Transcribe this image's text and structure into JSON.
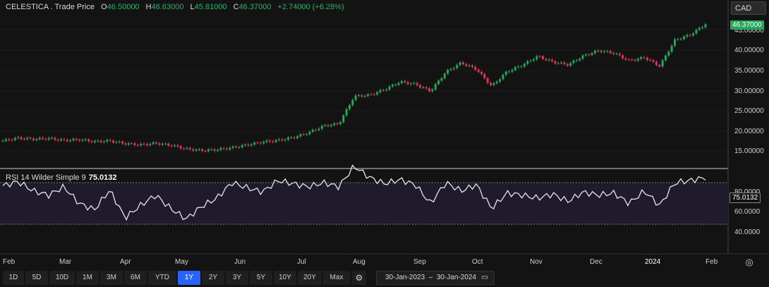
{
  "header": {
    "symbol": "CELESTICA . Trade Price",
    "o_label": "O",
    "o_val": "46.50000",
    "h_label": "H",
    "h_val": "46.63000",
    "l_label": "L",
    "l_val": "45.81000",
    "c_label": "C",
    "c_val": "46.37000",
    "change": "+2.74000 (+6.28%)"
  },
  "currency": {
    "selected": "CAD"
  },
  "price_axis": {
    "labels": [
      "45.00000",
      "40.00000",
      "35.00000",
      "30.00000",
      "25.00000",
      "20.00000",
      "15.00000"
    ],
    "last_price": "46.37000"
  },
  "rsi": {
    "title": "RSI 14 Wilder Simple 9",
    "value": "75.0132",
    "axis_labels": [
      "80.0000",
      "60.0000",
      "40.0000"
    ]
  },
  "time_axis": [
    "Feb",
    "Mar",
    "Apr",
    "May",
    "Jun",
    "Jul",
    "Aug",
    "Sep",
    "Oct",
    "Nov",
    "Dec",
    "2024",
    "Feb"
  ],
  "toolbar": {
    "ranges": [
      "1D",
      "5D",
      "10D",
      "1M",
      "3M",
      "6M",
      "YTD",
      "1Y",
      "2Y",
      "3Y",
      "5Y",
      "10Y",
      "20Y",
      "Max"
    ],
    "active": "1Y",
    "date_from": "30-Jan-2023",
    "date_to": "30-Jan-2024"
  },
  "colors": {
    "up": "#26a65b",
    "down": "#e0345a",
    "accent": "#2962ff",
    "rsi_line": "#e6e6e6",
    "rsi_band": "#1f1a2b"
  },
  "chart_data": {
    "type": "line",
    "series": [
      {
        "values": [
          17.5,
          18.2,
          17.9,
          18.1,
          17.6,
          17.8,
          17.3,
          17.5,
          16.8,
          16.5,
          16.9,
          16.4,
          15.5,
          15.1,
          15.3,
          15.8,
          16.5,
          17.2,
          17.6,
          18.3,
          19.5,
          21.2,
          21.7,
          28.5,
          28.8,
          30.2,
          32.1,
          31.5,
          29.8,
          34.5,
          36.8,
          35.2,
          31.0,
          34.6,
          36.2,
          38.4,
          37.0,
          36.3,
          38.5,
          39.8,
          39.2,
          37.3,
          38.1,
          36.0,
          42.4,
          43.7,
          46.37
        ]
      },
      {
        "values": [
          67,
          71,
          62,
          58,
          66,
          50,
          44,
          63,
          36,
          48,
          58,
          45,
          35,
          47,
          55,
          70,
          65,
          61,
          72,
          69,
          66,
          70,
          66,
          86,
          75,
          69,
          73,
          68,
          50,
          70,
          62,
          68,
          45,
          60,
          58,
          55,
          59,
          52,
          61,
          58,
          60,
          50,
          62,
          48,
          70,
          72,
          75.0132
        ]
      }
    ],
    "ylim_price": [
      12,
      48
    ],
    "ylim_rsi": [
      20,
      90
    ]
  }
}
